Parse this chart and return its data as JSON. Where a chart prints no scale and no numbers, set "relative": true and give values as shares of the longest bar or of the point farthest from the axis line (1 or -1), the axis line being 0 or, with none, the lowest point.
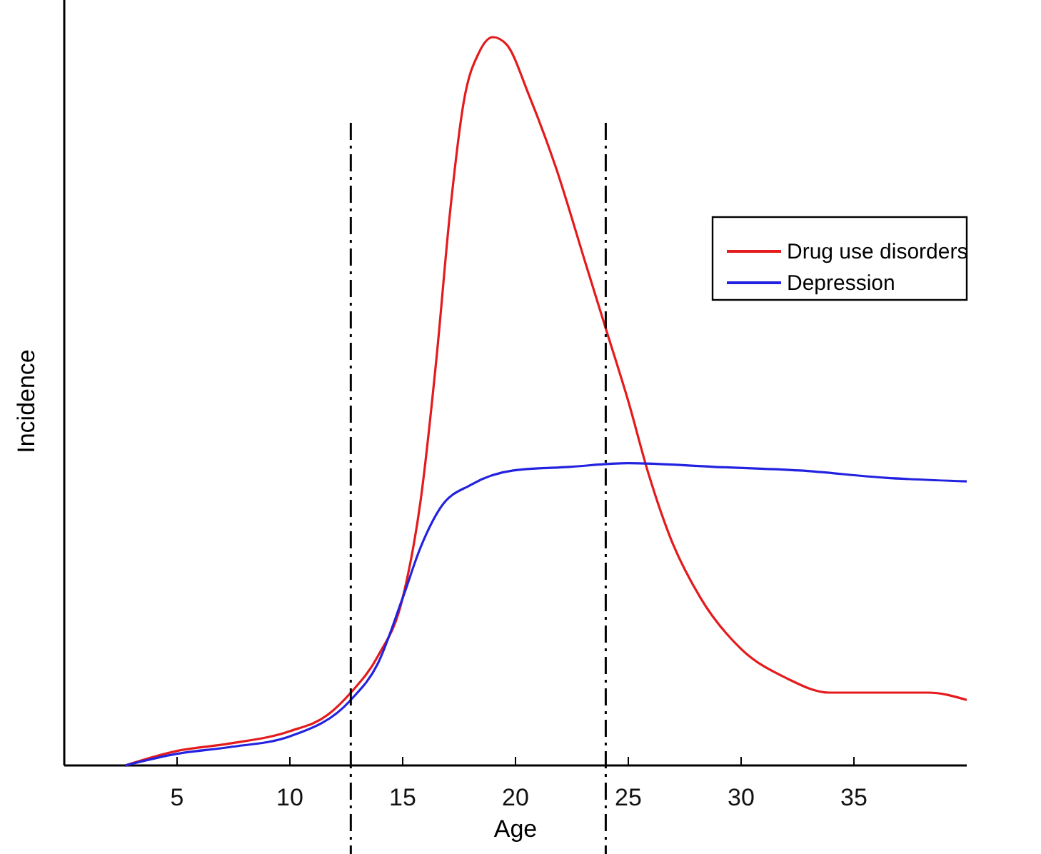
{
  "chart_data": {
    "type": "line",
    "relative": true,
    "xlabel": "Age",
    "ylabel": "Incidence",
    "xlim": [
      0,
      40
    ],
    "xticks": [
      5,
      10,
      15,
      20,
      25,
      30,
      35
    ],
    "legend": "top right",
    "grid": false,
    "series": [
      {
        "name": "Drug use disorders",
        "color": "#e41a1c",
        "x": [
          2.7,
          5,
          7.3,
          10,
          11.7,
          12.7,
          13.9,
          15,
          15.8,
          16.5,
          17.1,
          17.7,
          18.4,
          19,
          19.6,
          20.6,
          21.8,
          23.1,
          24,
          25,
          25.9,
          26.9,
          28.2,
          30,
          32,
          33.9,
          36.4,
          38.3,
          40
        ],
        "values": [
          0,
          0.02,
          0.03,
          0.047,
          0.07,
          0.1,
          0.15,
          0.23,
          0.365,
          0.56,
          0.76,
          0.91,
          0.98,
          1,
          0.99,
          0.92,
          0.82,
          0.69,
          0.6,
          0.5,
          0.4,
          0.31,
          0.23,
          0.16,
          0.12,
          0.1,
          0.1,
          0.1,
          0.09
        ]
      },
      {
        "name": "Depression",
        "color": "#2222e0",
        "x": [
          2.7,
          5,
          7.3,
          10,
          12.7,
          13.9,
          15,
          15.8,
          16.7,
          18,
          19.9,
          22.4,
          25,
          28.8,
          32.6,
          36.4,
          40
        ],
        "values": [
          0,
          0.016,
          0.025,
          0.04,
          0.09,
          0.14,
          0.23,
          0.3,
          0.355,
          0.385,
          0.405,
          0.41,
          0.415,
          0.41,
          0.405,
          0.395,
          0.39
        ]
      }
    ],
    "ref_lines": [
      {
        "axis": "x",
        "value": 12.7,
        "color": "#000000",
        "line_style": "dashdot"
      },
      {
        "axis": "x",
        "value": 24,
        "color": "#000000",
        "line_style": "dashdot"
      }
    ]
  }
}
